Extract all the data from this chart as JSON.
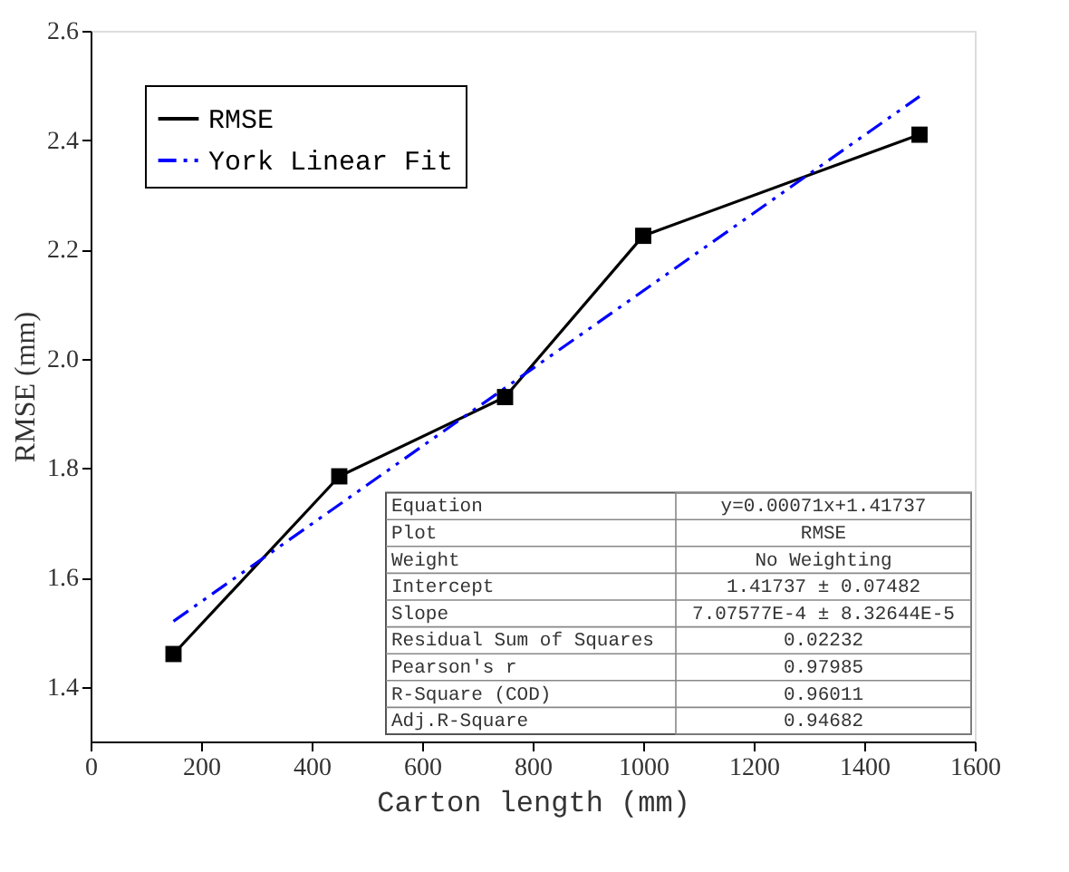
{
  "chart_data": {
    "type": "line",
    "xlabel": "Carton length (mm)",
    "ylabel": "RMSE (mm)",
    "xlim": [
      0,
      1600
    ],
    "xticks": [
      0,
      200,
      400,
      600,
      800,
      1000,
      1200,
      1400,
      1600
    ],
    "ylim": [
      1.3,
      2.6
    ],
    "yticks": [
      1.4,
      1.6,
      1.8,
      {
        "value": 2.0,
        "label": "2.0"
      },
      2.2,
      2.4,
      2.6
    ],
    "grid": false,
    "legend": "top left",
    "series": [
      {
        "name": "RMSE",
        "color": "#000000",
        "x": [
          150,
          450,
          750,
          1000,
          1500
        ],
        "values": [
          1.46,
          1.785,
          1.93,
          2.225,
          2.41
        ],
        "marker": "square",
        "line_style": "solid"
      },
      {
        "name": "York Linear Fit",
        "color": "#0000ff",
        "x": [
          150,
          1500
        ],
        "values": [
          1.52,
          2.48
        ],
        "marker": "none",
        "line_style": "dashed"
      }
    ],
    "annotations": [
      "Equation",
      "y=0.00071x+1.41737",
      "Plot",
      "RMSE",
      "Weight",
      "No Weighting",
      "Intercept",
      "1.41737 ± 0.07482",
      "Slope",
      "7.07577E-4 ± 8.32644E-5",
      "Residual Sum of Squares",
      "0.02232",
      "Pearson's r",
      "0.97985",
      "R-Square (COD)",
      "0.96011",
      "Adj.R-Square",
      "0.94682"
    ]
  }
}
